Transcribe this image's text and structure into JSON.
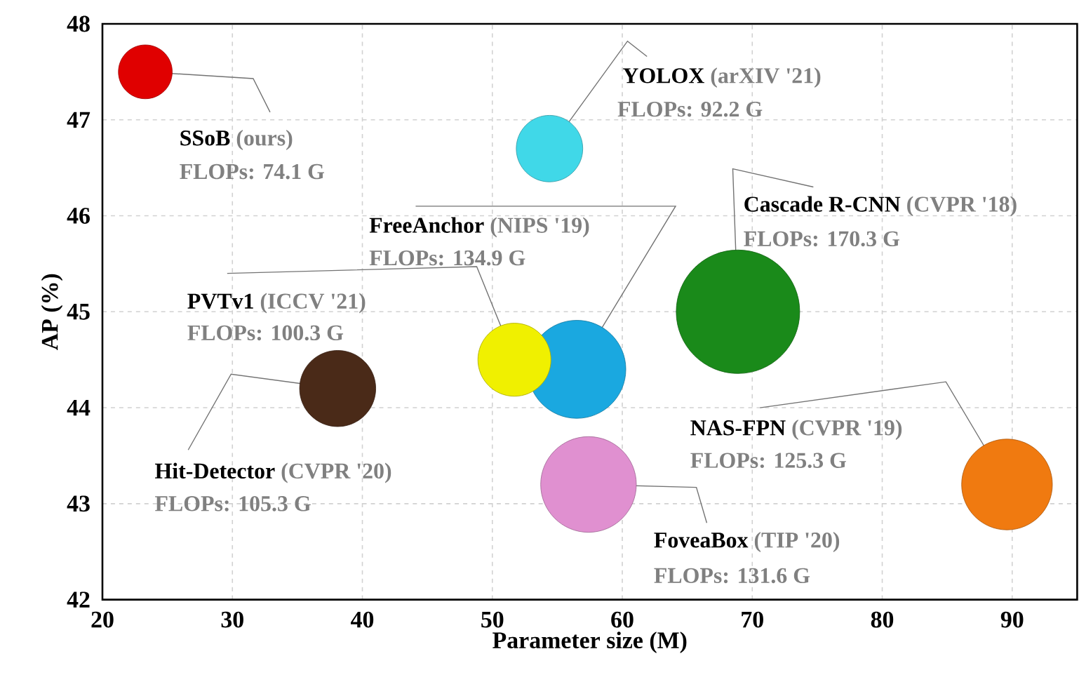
{
  "chart_data": {
    "type": "bubble",
    "xlabel": "Parameter size (M)",
    "ylabel": "AP (%)",
    "xlim": [
      20,
      95
    ],
    "ylim": [
      42,
      48
    ],
    "xticks": [
      20,
      30,
      40,
      50,
      60,
      70,
      80,
      90
    ],
    "yticks": [
      42,
      43,
      44,
      45,
      46,
      47,
      48
    ],
    "grid": true,
    "marker": "circle",
    "series": [
      {
        "name": "SSoB",
        "color": "#e00000",
        "x": [
          23.3
        ],
        "values": [
          47.5
        ],
        "sizes": [
          0.19
        ]
      },
      {
        "name": "YOLOX",
        "color": "#40d8e8",
        "x": [
          54.4
        ],
        "values": [
          46.7
        ],
        "sizes": [
          0.29
        ]
      },
      {
        "name": "Cascade R-CNN",
        "color": "#1a8a1a",
        "x": [
          68.9
        ],
        "values": [
          45.0
        ],
        "sizes": [
          1
        ]
      },
      {
        "name": "FreeAnchor",
        "color": "#1aa8e0",
        "x": [
          56.5
        ],
        "values": [
          44.4
        ],
        "sizes": [
          0.63
        ]
      },
      {
        "name": "PVTv1",
        "color": "#f0f000",
        "x": [
          51.7
        ],
        "values": [
          44.5
        ],
        "sizes": [
          0.35
        ]
      },
      {
        "name": "Hit-Detector",
        "color": "#4a2a18",
        "x": [
          38.1
        ],
        "values": [
          44.2
        ],
        "sizes": [
          0.38
        ]
      },
      {
        "name": "NAS-FPN",
        "color": "#f07a10",
        "x": [
          89.6
        ],
        "values": [
          43.2
        ],
        "sizes": [
          0.54
        ]
      },
      {
        "name": "FoveaBox",
        "color": "#e090d0",
        "x": [
          57.4
        ],
        "values": [
          43.2
        ],
        "sizes": [
          0.6
        ]
      }
    ],
    "annotations": [
      {
        "text": "(ours)",
        "x": 23.3,
        "y": 47.5
      },
      "FLOPs: 74.1 G",
      "(arXIV '21)",
      "FLOPs: 92.2 G",
      "(CVPR '18)",
      "FLOPs: 170.3 G",
      "(NIPS '19)",
      "FLOPs: 134.9 G",
      "(ICCV '21)",
      "FLOPs: 100.3 G",
      "(CVPR '20)",
      "FLOPs: 105.3 G",
      "(CVPR '19)",
      "FLOPs: 125.3 G",
      "(TIP '20)",
      "FLOPs: 131.6 G"
    ]
  }
}
